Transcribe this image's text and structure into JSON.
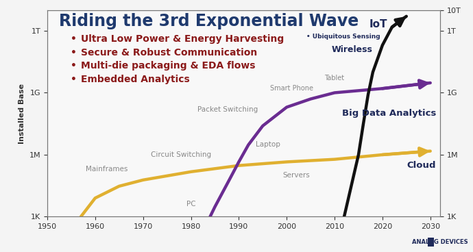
{
  "chart_data": {
    "type": "line",
    "title": "Riding the 3rd Exponential Wave",
    "bullets": [
      "Ultra Low Power & Energy Harvesting",
      "Secure & Robust Communication",
      "Multi-die packaging & EDA flows",
      "Embedded Analytics"
    ],
    "y_label": "Installed Base",
    "annotations": [
      "Mainframes",
      "Circuit Switching",
      "PC",
      "Laptop",
      "Packet Switching",
      "Servers",
      "Smart Phone",
      "Tablet",
      "Wireless",
      "• Ubiquitous Sensing"
    ],
    "logo": "ANALOG DEVICES",
    "log": "y",
    "grid": false,
    "xlim": [
      1950,
      2032
    ],
    "xticks": [
      1950,
      1960,
      1970,
      1980,
      1990,
      2000,
      2010,
      2020,
      2030
    ],
    "ylim": [
      1000,
      10000000000000
    ],
    "yticks": [
      {
        "value": 1000,
        "label": "1K"
      },
      {
        "value": 1000000,
        "label": "1M"
      },
      {
        "value": 1000000000,
        "label": "1G"
      },
      {
        "value": 1000000000000,
        "label": "1T"
      }
    ],
    "y2lim": [
      1000,
      10000000000000
    ],
    "y2ticks": [
      {
        "value": 1000,
        "label": "1K"
      },
      {
        "value": 1000000,
        "label": "1M"
      },
      {
        "value": 1000000000,
        "label": "1G"
      },
      {
        "value": 1000000000000,
        "label": "1T"
      },
      {
        "value": 10000000000000,
        "label": "10T"
      }
    ],
    "series": [
      {
        "name": "Cloud",
        "color": "#e0b030",
        "x": [
          1957,
          1960,
          1965,
          1970,
          1980,
          1990,
          2000,
          2010,
          2020,
          2030
        ],
        "values": [
          1000,
          8000,
          30000,
          60000,
          150000,
          300000,
          450000,
          600000,
          1000000,
          1500000
        ]
      },
      {
        "name": "Big Data Analytics",
        "color": "#6a2c91",
        "x": [
          1984,
          1985,
          1988,
          1990,
          1992,
          1995,
          2000,
          2005,
          2010,
          2020,
          2030
        ],
        "values": [
          1000,
          3000,
          60000,
          450000,
          3000000,
          25000000,
          200000000,
          500000000,
          1000000000,
          1600000000,
          3000000000
        ]
      },
      {
        "name": "IoT",
        "color": "#111111",
        "x": [
          2012,
          2013,
          2014,
          2015,
          2016,
          2017,
          2018,
          2020,
          2022,
          2025
        ],
        "values": [
          1000,
          10000,
          100000,
          1000000,
          30000000,
          800000000,
          10000000000,
          200000000000,
          1500000000000,
          5000000000000
        ]
      }
    ]
  }
}
